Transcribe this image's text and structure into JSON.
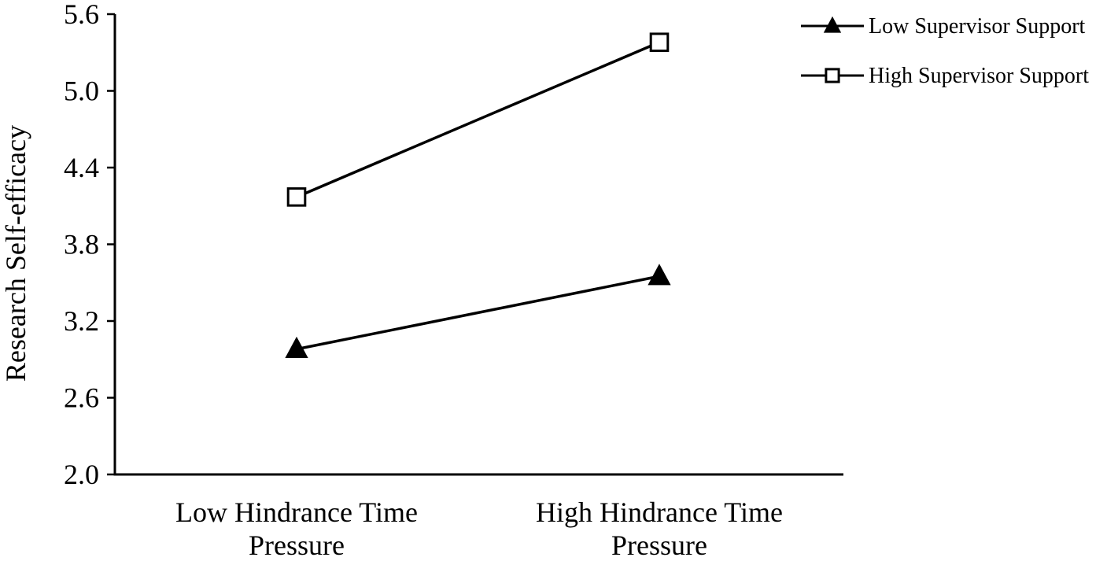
{
  "chart_data": {
    "type": "line",
    "title": "",
    "xlabel": "",
    "ylabel": "Research Self-efficacy",
    "categories": [
      [
        "Low Hindrance Time",
        "Pressure"
      ],
      [
        "High Hindrance Time",
        "Pressure"
      ]
    ],
    "ylim": [
      2.0,
      5.6
    ],
    "yticks": [
      "2.0",
      "2.6",
      "3.2",
      "3.8",
      "4.4",
      "5.0",
      "5.6"
    ],
    "grid": false,
    "legend_position": "top-right",
    "series": [
      {
        "name": "Low Supervisor Support",
        "marker": "filled-triangle",
        "values": [
          2.98,
          3.55
        ]
      },
      {
        "name": "High Supervisor Support",
        "marker": "open-square",
        "values": [
          4.17,
          5.38
        ]
      }
    ]
  }
}
